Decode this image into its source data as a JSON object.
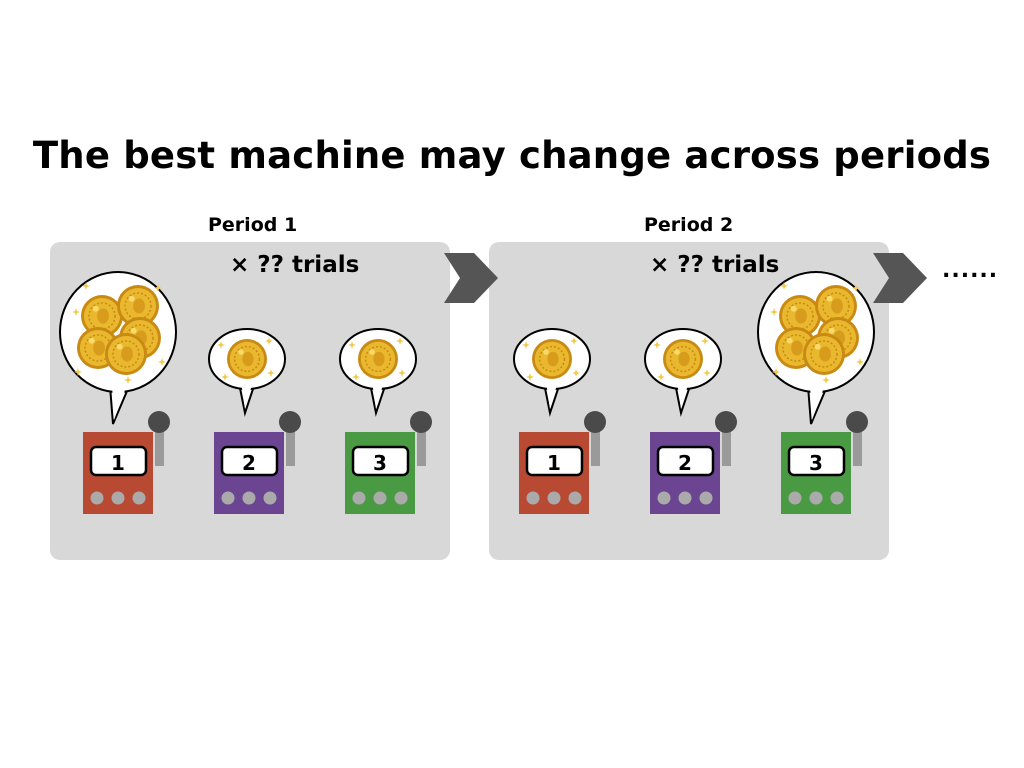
{
  "title": "The best machine may change across periods",
  "periods": [
    {
      "label": "Period 1",
      "trials": "× ?? trials",
      "best_machine": "1"
    },
    {
      "label": "Period 2",
      "trials": "× ?? trials",
      "best_machine": "3"
    }
  ],
  "machines": [
    {
      "number": "1",
      "color": "#b84a33"
    },
    {
      "number": "2",
      "color": "#6b4591"
    },
    {
      "number": "3",
      "color": "#4a9a44"
    }
  ],
  "continuation": "......",
  "colors": {
    "panel": "#d8d8d8",
    "arrow": "#555555",
    "coin": "#e9b82e",
    "knob": "#4a4a4a"
  }
}
